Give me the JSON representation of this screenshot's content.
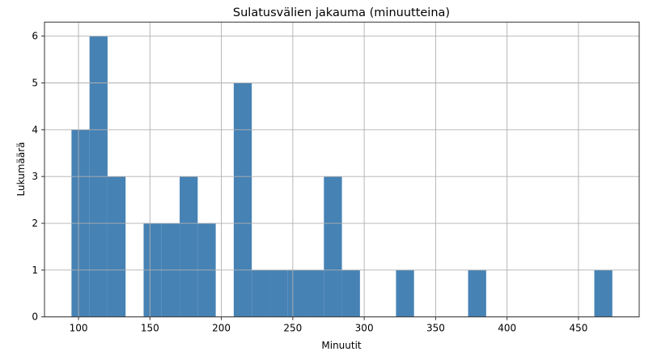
{
  "chart_data": {
    "type": "bar",
    "subtype": "histogram",
    "title": "Sulatusvälien jakauma (minuutteina)",
    "xlabel": "Minuutit",
    "ylabel": "Lukumäärä",
    "bin_start": 95.1,
    "bin_width": 12.62,
    "counts": [
      4,
      6,
      3,
      0,
      2,
      2,
      3,
      2,
      0,
      5,
      1,
      1,
      1,
      1,
      3,
      1,
      0,
      0,
      1,
      0,
      0,
      0,
      1,
      0,
      0,
      0,
      0,
      0,
      0,
      1
    ],
    "xlim": [
      76.2,
      492.5
    ],
    "ylim": [
      0,
      6.3
    ],
    "xticks": [
      "100",
      "150",
      "200",
      "250",
      "300",
      "350",
      "400",
      "450"
    ],
    "yticks": [
      "0",
      "1",
      "2",
      "3",
      "4",
      "5",
      "6"
    ],
    "grid": true,
    "bar_color": "#4682b4"
  }
}
